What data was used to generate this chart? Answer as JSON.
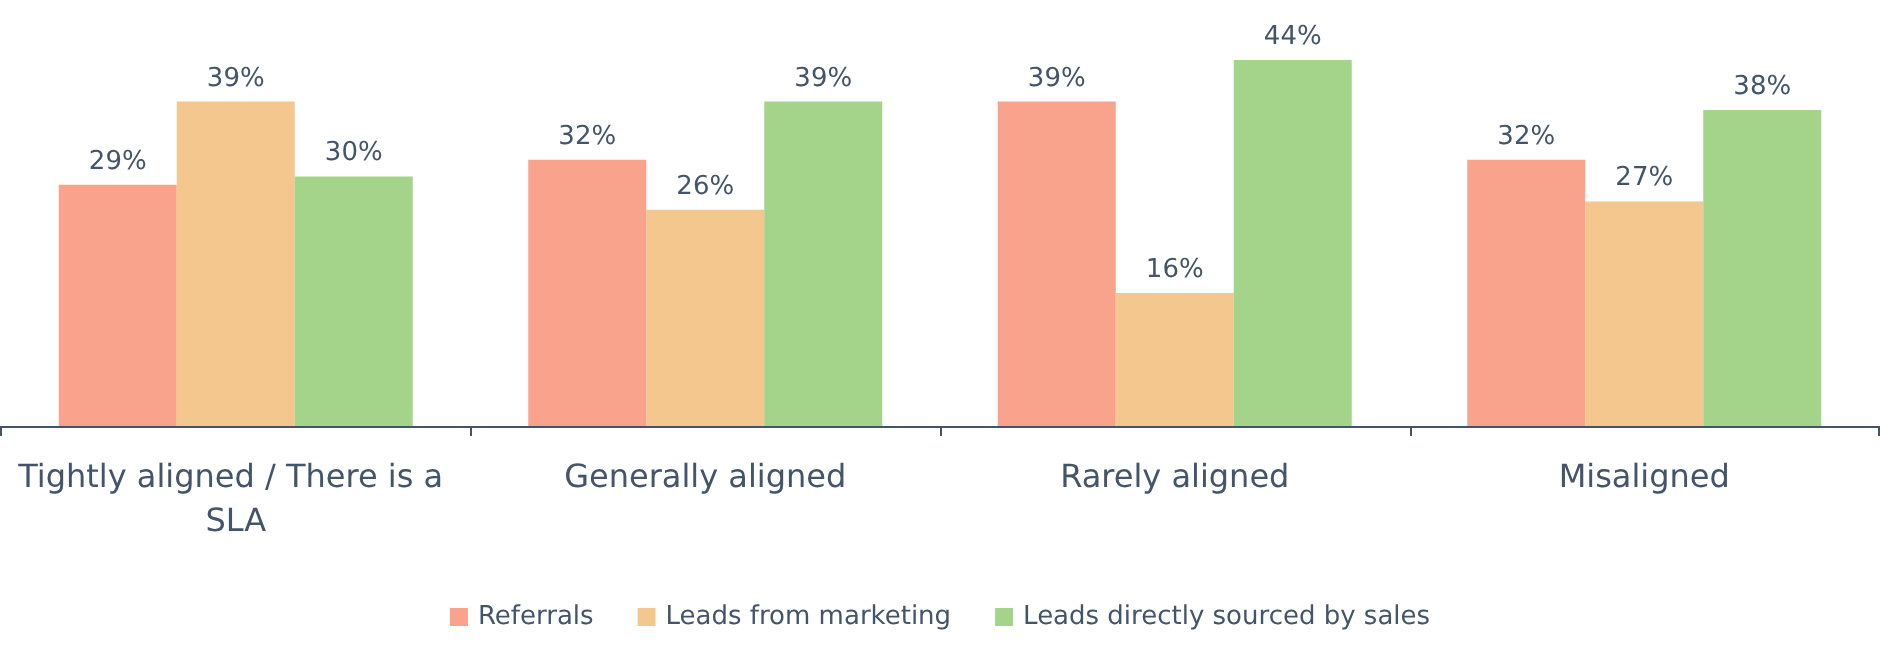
{
  "chart_data": {
    "type": "bar",
    "categories": [
      "Tightly aligned / There is a SLA",
      "Generally aligned",
      "Rarely aligned",
      "Misaligned"
    ],
    "series": [
      {
        "name": "Referrals",
        "color": "#f9a38c",
        "values": [
          29,
          32,
          39,
          32
        ],
        "value_labels": [
          "29%",
          "32%",
          "39%",
          "32%"
        ]
      },
      {
        "name": "Leads from marketing",
        "color": "#f4c78f",
        "values": [
          39,
          26,
          16,
          27
        ],
        "value_labels": [
          "39%",
          "26%",
          "16%",
          "27%"
        ]
      },
      {
        "name": "Leads directly sourced by sales",
        "color": "#a3d48a",
        "values": [
          30,
          39,
          44,
          38
        ],
        "value_labels": [
          "30%",
          "39%",
          "44%",
          "38%"
        ]
      }
    ],
    "legend": "bottom",
    "grid": false
  }
}
